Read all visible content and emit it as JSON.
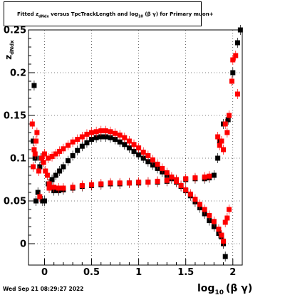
{
  "title": {
    "prefix": "Fitted  z",
    "sub1": "dNdx",
    "middle": "  versus TpcTrackLength and log",
    "sub2": "10",
    "suffix": "(β γ) for Primary muon+"
  },
  "timestamp": "Wed Sep 21 08:29:27 2022",
  "axes": {
    "ylabel_main": "z",
    "ylabel_sub": "dNdx",
    "xlabel_main": "log",
    "xlabel_sub": "10",
    "xlabel_suffix": "(β γ)"
  },
  "colors": {
    "series_black": "#000000",
    "series_red": "#ff0000",
    "axis": "#000000"
  },
  "chart_data": {
    "type": "scatter",
    "xlim": [
      -0.17,
      2.1
    ],
    "ylim": [
      -0.025,
      0.25
    ],
    "x_ticks": [
      0,
      0.5,
      1,
      1.5,
      2
    ],
    "x_tick_labels": [
      "0",
      "0.5",
      "1",
      "1.5",
      "2"
    ],
    "y_ticks": [
      0,
      0.05,
      0.1,
      0.15,
      0.2,
      0.25
    ],
    "y_tick_labels": [
      "0",
      "0.05",
      "0.1",
      "0.15",
      "0.2",
      "0.25"
    ],
    "grid": true,
    "series": [
      {
        "color": "black",
        "points": [
          [
            -0.12,
            0.12
          ],
          [
            -0.11,
            0.185
          ],
          [
            -0.1,
            0.1
          ],
          [
            -0.09,
            0.05
          ],
          [
            -0.07,
            0.06
          ],
          [
            -0.05,
            0.09
          ],
          [
            -0.04,
            0.1
          ],
          [
            -0.02,
            0.05
          ],
          [
            0.0,
            0.05
          ],
          [
            0.04,
            0.07
          ],
          [
            0.08,
            0.075
          ],
          [
            0.12,
            0.08
          ],
          [
            0.16,
            0.085
          ],
          [
            0.2,
            0.09
          ],
          [
            0.25,
            0.097
          ],
          [
            0.3,
            0.103
          ],
          [
            0.35,
            0.109
          ],
          [
            0.4,
            0.114
          ],
          [
            0.45,
            0.118
          ],
          [
            0.5,
            0.122
          ],
          [
            0.55,
            0.124
          ],
          [
            0.6,
            0.125
          ],
          [
            0.65,
            0.125
          ],
          [
            0.7,
            0.124
          ],
          [
            0.75,
            0.122
          ],
          [
            0.8,
            0.119
          ],
          [
            0.85,
            0.116
          ],
          [
            0.9,
            0.112
          ],
          [
            0.95,
            0.108
          ],
          [
            1.0,
            0.104
          ],
          [
            1.05,
            0.1
          ],
          [
            1.1,
            0.096
          ],
          [
            1.15,
            0.092
          ],
          [
            1.2,
            0.088
          ],
          [
            1.25,
            0.084
          ],
          [
            1.3,
            0.08
          ],
          [
            1.35,
            0.076
          ],
          [
            1.4,
            0.072
          ],
          [
            1.45,
            0.067
          ],
          [
            1.5,
            0.062
          ],
          [
            1.55,
            0.056
          ],
          [
            1.6,
            0.049
          ],
          [
            1.65,
            0.042
          ],
          [
            1.7,
            0.035
          ],
          [
            1.75,
            0.027
          ],
          [
            1.8,
            0.02
          ],
          [
            1.85,
            0.012
          ],
          [
            1.88,
            0.008
          ],
          [
            1.9,
            0.0
          ],
          [
            1.92,
            -0.015
          ],
          [
            0.05,
            0.065
          ],
          [
            0.1,
            0.062
          ],
          [
            0.15,
            0.062
          ],
          [
            0.2,
            0.063
          ],
          [
            0.3,
            0.065
          ],
          [
            0.4,
            0.067
          ],
          [
            0.5,
            0.068
          ],
          [
            0.6,
            0.069
          ],
          [
            0.7,
            0.07
          ],
          [
            0.8,
            0.07
          ],
          [
            0.9,
            0.071
          ],
          [
            1.0,
            0.071
          ],
          [
            1.1,
            0.072
          ],
          [
            1.2,
            0.072
          ],
          [
            1.3,
            0.073
          ],
          [
            1.4,
            0.074
          ],
          [
            1.5,
            0.075
          ],
          [
            1.6,
            0.076
          ],
          [
            1.7,
            0.076
          ],
          [
            1.75,
            0.077
          ],
          [
            1.8,
            0.08
          ],
          [
            1.84,
            0.1
          ],
          [
            1.86,
            0.12
          ],
          [
            1.9,
            0.14
          ],
          [
            1.95,
            0.145
          ],
          [
            2.0,
            0.2
          ],
          [
            2.05,
            0.235
          ],
          [
            2.08,
            0.25
          ]
        ]
      },
      {
        "color": "red",
        "points": [
          [
            -0.13,
            0.14
          ],
          [
            -0.12,
            0.09
          ],
          [
            -0.11,
            0.11
          ],
          [
            -0.1,
            0.105
          ],
          [
            -0.09,
            0.12
          ],
          [
            -0.08,
            0.13
          ],
          [
            -0.06,
            0.085
          ],
          [
            -0.05,
            0.055
          ],
          [
            -0.03,
            0.1
          ],
          [
            -0.01,
            0.095
          ],
          [
            0.01,
            0.085
          ],
          [
            0.03,
            0.08
          ],
          [
            0.05,
            0.065
          ],
          [
            0.0,
            0.105
          ],
          [
            0.04,
            0.1
          ],
          [
            0.08,
            0.102
          ],
          [
            0.12,
            0.105
          ],
          [
            0.16,
            0.108
          ],
          [
            0.2,
            0.111
          ],
          [
            0.25,
            0.115
          ],
          [
            0.3,
            0.119
          ],
          [
            0.35,
            0.122
          ],
          [
            0.4,
            0.125
          ],
          [
            0.45,
            0.128
          ],
          [
            0.5,
            0.13
          ],
          [
            0.55,
            0.131
          ],
          [
            0.6,
            0.132
          ],
          [
            0.65,
            0.132
          ],
          [
            0.7,
            0.131
          ],
          [
            0.75,
            0.129
          ],
          [
            0.8,
            0.127
          ],
          [
            0.85,
            0.124
          ],
          [
            0.9,
            0.12
          ],
          [
            0.95,
            0.116
          ],
          [
            1.0,
            0.112
          ],
          [
            1.05,
            0.107
          ],
          [
            1.1,
            0.103
          ],
          [
            1.15,
            0.098
          ],
          [
            1.2,
            0.093
          ],
          [
            1.25,
            0.088
          ],
          [
            1.3,
            0.083
          ],
          [
            1.35,
            0.078
          ],
          [
            1.4,
            0.073
          ],
          [
            1.45,
            0.068
          ],
          [
            1.5,
            0.063
          ],
          [
            1.55,
            0.058
          ],
          [
            1.6,
            0.052
          ],
          [
            1.65,
            0.046
          ],
          [
            1.7,
            0.04
          ],
          [
            1.75,
            0.033
          ],
          [
            1.8,
            0.026
          ],
          [
            1.85,
            0.017
          ],
          [
            1.88,
            0.01
          ],
          [
            1.9,
            0.003
          ],
          [
            0.05,
            0.07
          ],
          [
            0.1,
            0.066
          ],
          [
            0.15,
            0.065
          ],
          [
            0.2,
            0.065
          ],
          [
            0.3,
            0.066
          ],
          [
            0.4,
            0.068
          ],
          [
            0.5,
            0.069
          ],
          [
            0.6,
            0.07
          ],
          [
            0.7,
            0.071
          ],
          [
            0.8,
            0.071
          ],
          [
            0.9,
            0.071
          ],
          [
            1.0,
            0.072
          ],
          [
            1.1,
            0.072
          ],
          [
            1.2,
            0.073
          ],
          [
            1.3,
            0.074
          ],
          [
            1.4,
            0.075
          ],
          [
            1.5,
            0.076
          ],
          [
            1.6,
            0.077
          ],
          [
            1.7,
            0.078
          ],
          [
            1.75,
            0.079
          ],
          [
            1.84,
            0.125
          ],
          [
            1.86,
            0.115
          ],
          [
            1.88,
            0.12
          ],
          [
            1.9,
            0.11
          ],
          [
            1.92,
            0.14
          ],
          [
            1.94,
            0.13
          ],
          [
            1.96,
            0.15
          ],
          [
            1.99,
            0.19
          ],
          [
            2.0,
            0.215
          ],
          [
            2.03,
            0.22
          ],
          [
            2.05,
            0.175
          ],
          [
            1.92,
            0.025
          ],
          [
            1.94,
            0.03
          ],
          [
            1.96,
            0.04
          ]
        ]
      }
    ]
  }
}
